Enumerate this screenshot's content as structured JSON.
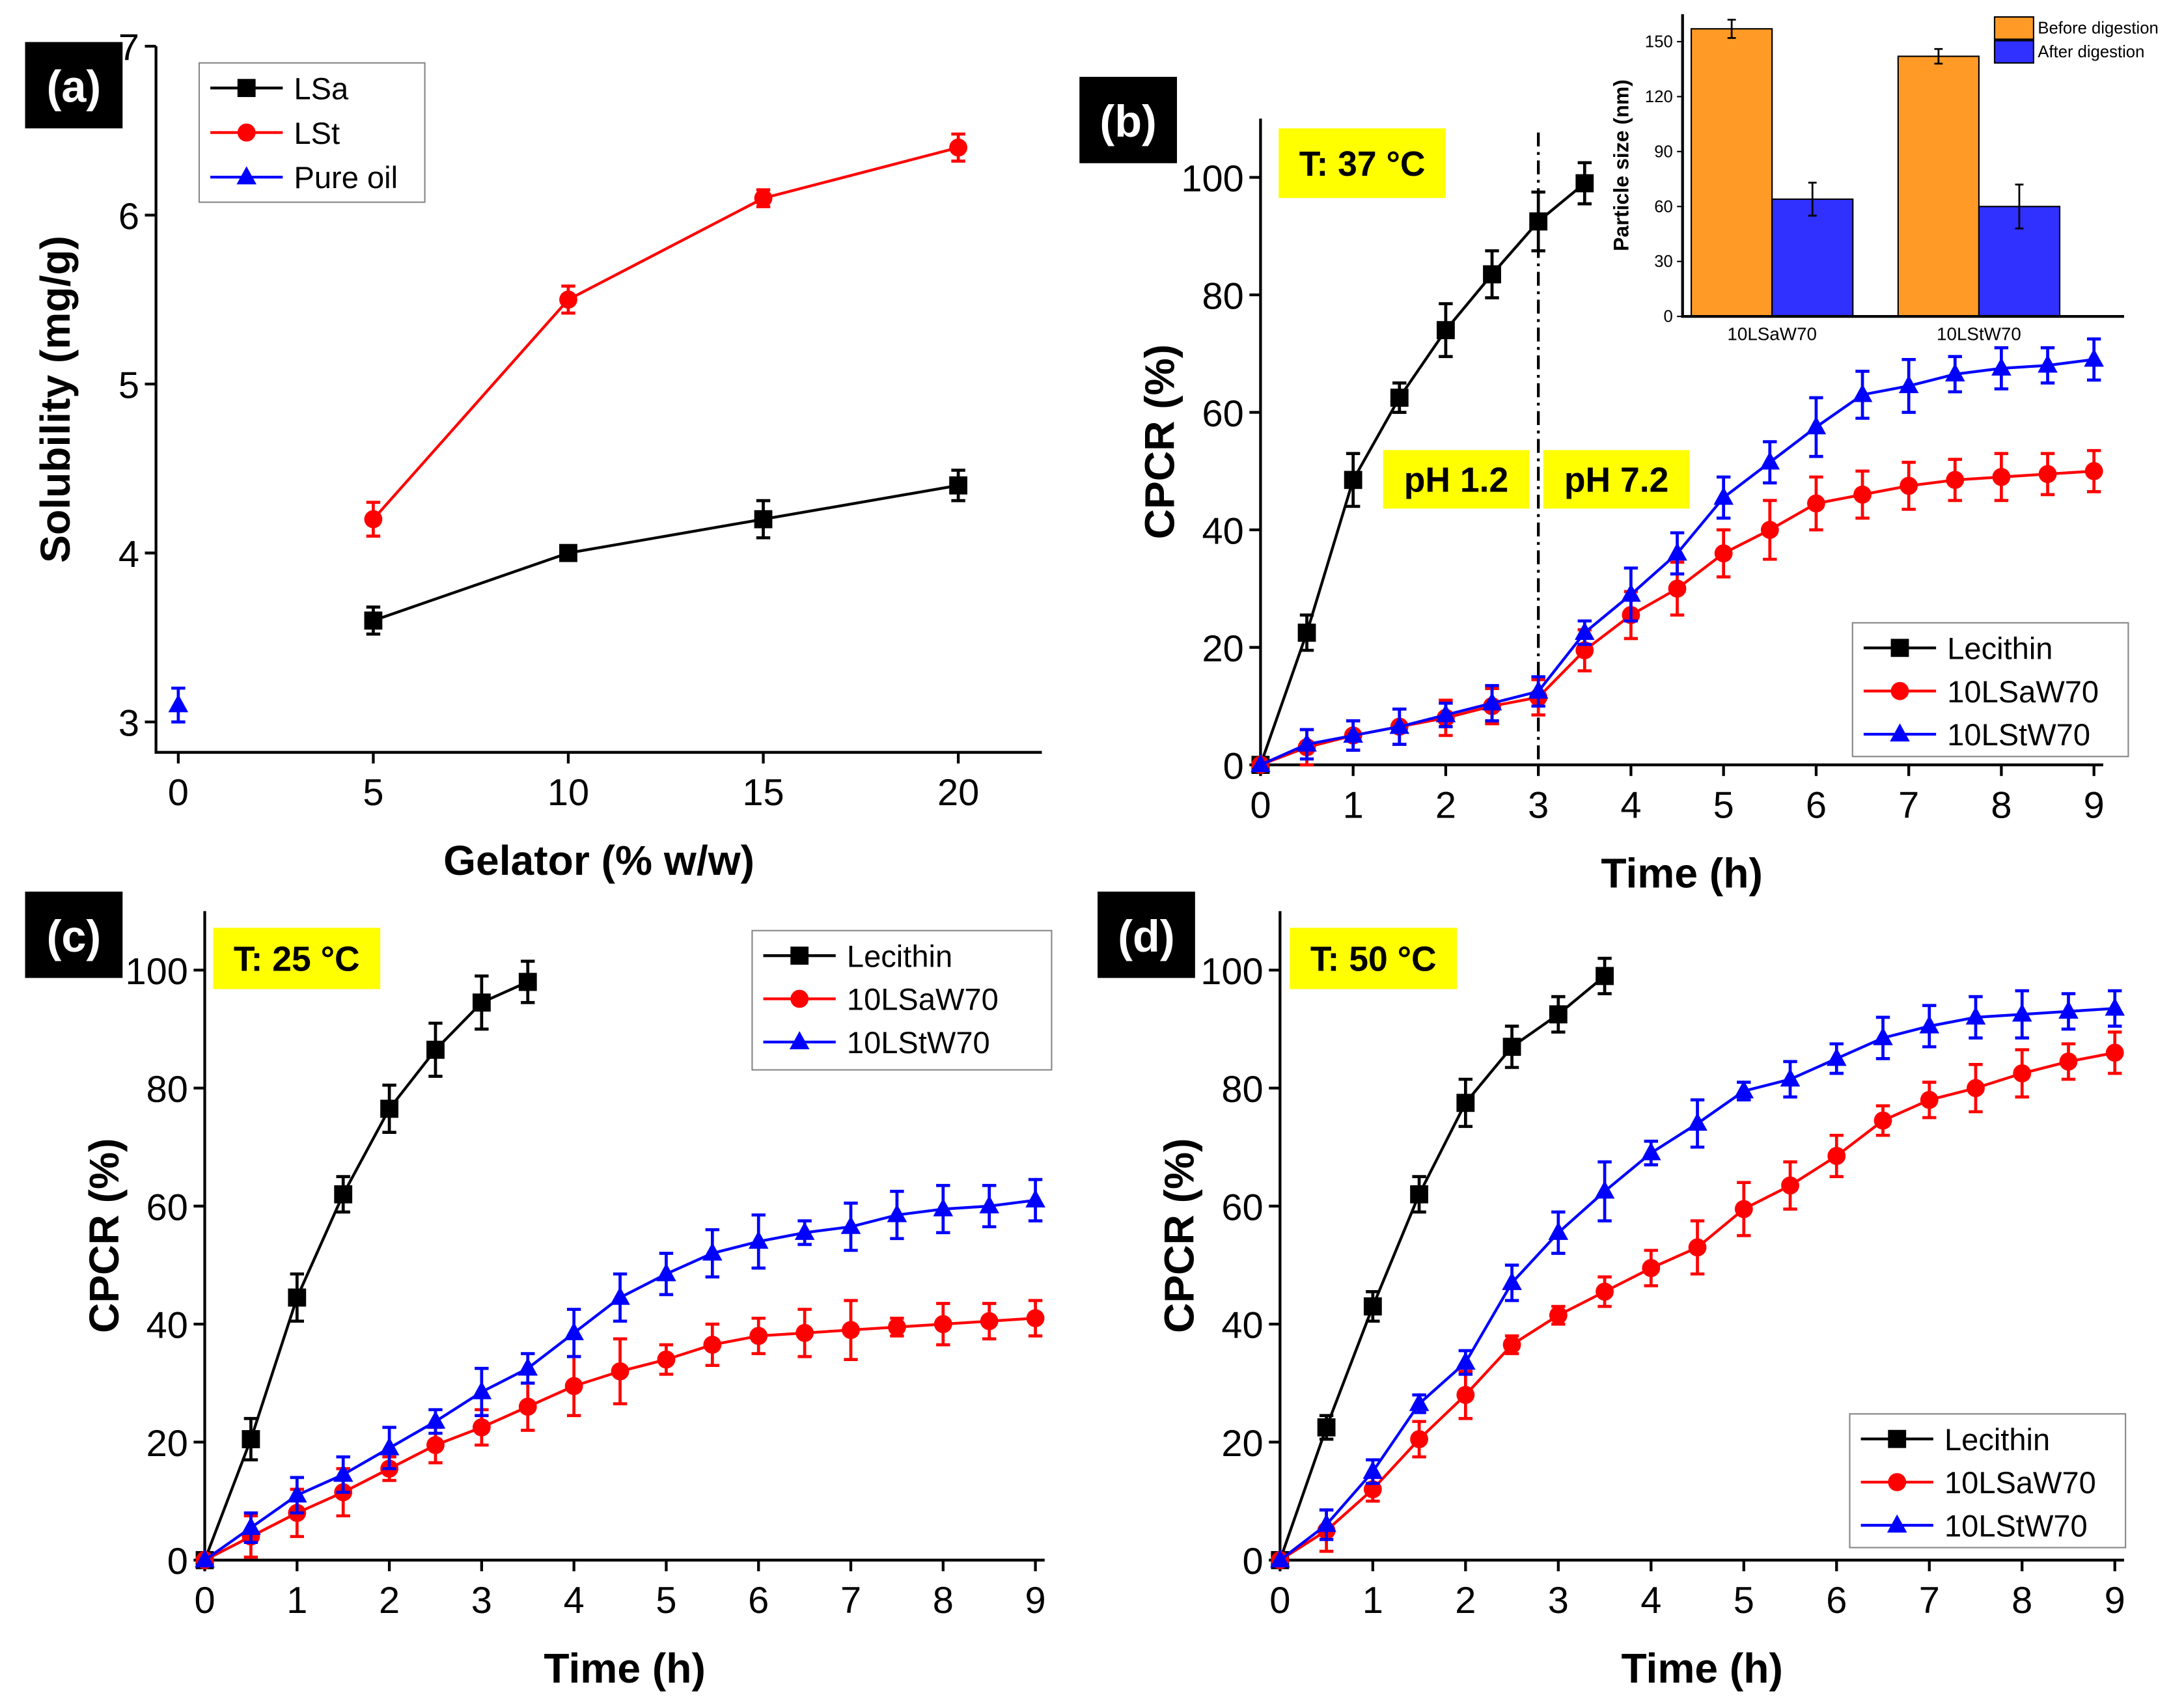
{
  "chart_data": [
    {
      "panel": "(a)",
      "type": "line",
      "xlabel": "Gelator (% w/w)",
      "ylabel": "Solubility (mg/g)",
      "xlim": [
        -0.8,
        22
      ],
      "ylim": [
        2.82,
        7
      ],
      "xticks": [
        0,
        5,
        10,
        15,
        20
      ],
      "yticks": [
        3,
        4,
        5,
        6,
        7
      ],
      "legend": "top-left",
      "grid": false,
      "series": [
        {
          "name": "LSa",
          "color": "#000000",
          "marker": "square",
          "x": [
            5,
            10,
            15,
            20
          ],
          "y": [
            3.6,
            4.0,
            4.2,
            4.4
          ],
          "err": [
            0.08,
            0.03,
            0.11,
            0.09
          ]
        },
        {
          "name": "LSt",
          "color": "#ff0000",
          "marker": "circle",
          "x": [
            5,
            10,
            15,
            20
          ],
          "y": [
            4.2,
            5.5,
            6.1,
            6.4
          ],
          "err": [
            0.1,
            0.08,
            0.05,
            0.08
          ]
        },
        {
          "name": "Pure oil",
          "color": "#0000ff",
          "marker": "triangle",
          "x": [
            0
          ],
          "y": [
            3.1
          ],
          "err": [
            0.1
          ]
        }
      ]
    },
    {
      "panel": "(b)",
      "type": "line",
      "xlabel": "Time (h)",
      "ylabel": "CPCR (%)",
      "xlim": [
        0,
        9.1
      ],
      "ylim": [
        0,
        110
      ],
      "xticks": [
        0,
        1,
        2,
        3,
        4,
        5,
        6,
        7,
        8,
        9
      ],
      "yticks": [
        0,
        20,
        40,
        60,
        80,
        100
      ],
      "legend": "bottom-right",
      "grid": false,
      "annotations": [
        "T: 37 °C",
        "pH 1.2",
        "pH 7.2"
      ],
      "vline_x": 3,
      "series": [
        {
          "name": "Lecithin",
          "color": "#000000",
          "marker": "square",
          "x": [
            0,
            0.5,
            1,
            1.5,
            2,
            2.5,
            3,
            3.5
          ],
          "y": [
            0,
            22.5,
            48.5,
            62.5,
            74,
            83.5,
            92.5,
            99
          ],
          "err": [
            0,
            3,
            4.5,
            2.5,
            4.5,
            4,
            5,
            3.5
          ]
        },
        {
          "name": "10LSaW70",
          "color": "#ff0000",
          "marker": "circle",
          "x": [
            0,
            0.5,
            1,
            1.5,
            2,
            2.5,
            3,
            3.5,
            4,
            4.5,
            5,
            5.5,
            6,
            6.5,
            7,
            7.5,
            8,
            8.5,
            9
          ],
          "y": [
            0,
            3,
            5,
            6.5,
            8,
            10,
            11.5,
            19.5,
            25.5,
            30,
            36,
            40,
            44.5,
            46,
            47.5,
            48.5,
            49,
            49.5,
            50
          ],
          "err": [
            0,
            3,
            2.5,
            3,
            3,
            3,
            3,
            3.5,
            4,
            4.5,
            4,
            5,
            4.5,
            4,
            4,
            3.5,
            4,
            3.5,
            3.5
          ]
        },
        {
          "name": "10LStW70",
          "color": "#0000ff",
          "marker": "triangle",
          "x": [
            0,
            0.5,
            1,
            1.5,
            2,
            2.5,
            3,
            3.5,
            4,
            4.5,
            5,
            5.5,
            6,
            6.5,
            7,
            7.5,
            8,
            8.5,
            9
          ],
          "y": [
            0,
            3.5,
            5,
            6.5,
            8.5,
            10.5,
            12.5,
            22.5,
            29,
            36,
            45.5,
            51.5,
            57.5,
            63,
            64.5,
            66.5,
            67.5,
            68,
            69
          ],
          "err": [
            0,
            2.5,
            2.5,
            3,
            2,
            3,
            2.5,
            2,
            4.5,
            3.5,
            3.5,
            3.5,
            5,
            4,
            4.5,
            3,
            3.5,
            3,
            3.5
          ]
        }
      ]
    },
    {
      "panel": "(b) inset",
      "type": "bar",
      "ylabel": "Particle size (nm)",
      "ylim": [
        0,
        165
      ],
      "yticks": [
        0,
        30,
        60,
        90,
        120,
        150
      ],
      "categories": [
        "10LSaW70",
        "10LStW70"
      ],
      "legend": "top-right",
      "series": [
        {
          "name": "Before digestion",
          "color": "#ff9a26",
          "values": [
            157,
            142
          ],
          "err": [
            5,
            4
          ]
        },
        {
          "name": "After digestion",
          "color": "#3030ff",
          "values": [
            64,
            60
          ],
          "err": [
            9,
            12
          ]
        }
      ]
    },
    {
      "panel": "(c)",
      "type": "line",
      "xlabel": "Time (h)",
      "ylabel": "CPCR (%)",
      "xlim": [
        0,
        9.1
      ],
      "ylim": [
        0,
        110
      ],
      "xticks": [
        0,
        1,
        2,
        3,
        4,
        5,
        6,
        7,
        8,
        9
      ],
      "yticks": [
        0,
        20,
        40,
        60,
        80,
        100
      ],
      "legend": "top-right",
      "grid": false,
      "annotations": [
        "T: 25 °C"
      ],
      "series": [
        {
          "name": "Lecithin",
          "color": "#000000",
          "marker": "square",
          "x": [
            0,
            0.5,
            1,
            1.5,
            2,
            2.5,
            3,
            3.5
          ],
          "y": [
            0,
            20.5,
            44.5,
            62,
            76.5,
            86.5,
            94.5,
            98
          ],
          "err": [
            0,
            3.5,
            4,
            3,
            4,
            4.5,
            4.5,
            3.5
          ]
        },
        {
          "name": "10LSaW70",
          "color": "#ff0000",
          "marker": "circle",
          "x": [
            0,
            0.5,
            1,
            1.5,
            2,
            2.5,
            3,
            3.5,
            4,
            4.5,
            5,
            5.5,
            6,
            6.5,
            7,
            7.5,
            8,
            8.5,
            9
          ],
          "y": [
            0,
            4,
            8,
            11.5,
            15.5,
            19.5,
            22.5,
            26,
            29.5,
            32,
            34,
            36.5,
            38,
            38.5,
            39,
            39.5,
            40,
            40.5,
            41
          ],
          "err": [
            0,
            3.5,
            4,
            4,
            2,
            3,
            3,
            4,
            5,
            5.5,
            2.5,
            3.5,
            3,
            4,
            5,
            1.5,
            3.5,
            3,
            3
          ]
        },
        {
          "name": "10LStW70",
          "color": "#0000ff",
          "marker": "triangle",
          "x": [
            0,
            0.5,
            1,
            1.5,
            2,
            2.5,
            3,
            3.5,
            4,
            4.5,
            5,
            5.5,
            6,
            6.5,
            7,
            7.5,
            8,
            8.5,
            9
          ],
          "y": [
            0,
            5.5,
            11,
            14.5,
            19,
            23.5,
            28.5,
            32.5,
            38.5,
            44.5,
            48.5,
            52,
            54,
            55.5,
            56.5,
            58.5,
            59.5,
            60,
            61
          ],
          "err": [
            0,
            2.5,
            3,
            3,
            3.5,
            2,
            4,
            2.5,
            4,
            4,
            3.5,
            4,
            4.5,
            2,
            4,
            4,
            4,
            3.5,
            3.5
          ]
        }
      ]
    },
    {
      "panel": "(d)",
      "type": "line",
      "xlabel": "Time (h)",
      "ylabel": "CPCR (%)",
      "xlim": [
        0,
        9.1
      ],
      "ylim": [
        0,
        110
      ],
      "xticks": [
        0,
        1,
        2,
        3,
        4,
        5,
        6,
        7,
        8,
        9
      ],
      "yticks": [
        0,
        20,
        40,
        60,
        80,
        100
      ],
      "legend": "bottom-right",
      "grid": false,
      "annotations": [
        "T: 50 °C"
      ],
      "series": [
        {
          "name": "Lecithin",
          "color": "#000000",
          "marker": "square",
          "x": [
            0,
            0.5,
            1,
            1.5,
            2,
            2.5,
            3,
            3.5
          ],
          "y": [
            0,
            22.5,
            43,
            62,
            77.5,
            87,
            92.5,
            99
          ],
          "err": [
            0,
            2,
            2.5,
            3,
            4,
            3.5,
            3,
            3
          ]
        },
        {
          "name": "10LSaW70",
          "color": "#ff0000",
          "marker": "circle",
          "x": [
            0,
            0.5,
            1,
            1.5,
            2,
            2.5,
            3,
            3.5,
            4,
            4.5,
            5,
            5.5,
            6,
            6.5,
            7,
            7.5,
            8,
            8.5,
            9
          ],
          "y": [
            0,
            5,
            12,
            20.5,
            28,
            36.5,
            41.5,
            45.5,
            49.5,
            53,
            59.5,
            63.5,
            68.5,
            74.5,
            78,
            80,
            82.5,
            84.5,
            86
          ],
          "err": [
            0,
            3.5,
            2,
            3,
            4,
            1.5,
            1.5,
            2.5,
            3,
            4.5,
            4.5,
            4,
            3.5,
            2.5,
            3,
            4,
            4,
            3,
            3.5
          ]
        },
        {
          "name": "10LStW70",
          "color": "#0000ff",
          "marker": "triangle",
          "x": [
            0,
            0.5,
            1,
            1.5,
            2,
            2.5,
            3,
            3.5,
            4,
            4.5,
            5,
            5.5,
            6,
            6.5,
            7,
            7.5,
            8,
            8.5,
            9
          ],
          "y": [
            0,
            6,
            15,
            26.5,
            33.5,
            47,
            55.5,
            62.5,
            69,
            74,
            79.5,
            81.5,
            85,
            88.5,
            90.5,
            92,
            92.5,
            93,
            93.5
          ],
          "err": [
            0,
            2.5,
            2,
            1.5,
            2,
            3,
            3.5,
            5,
            2,
            4,
            1.5,
            3,
            2.5,
            3.5,
            3.5,
            3.5,
            4,
            3,
            3
          ]
        }
      ]
    }
  ],
  "colors": {
    "label_box_bg": "#000000",
    "annotation_bg": "#ffff00"
  }
}
